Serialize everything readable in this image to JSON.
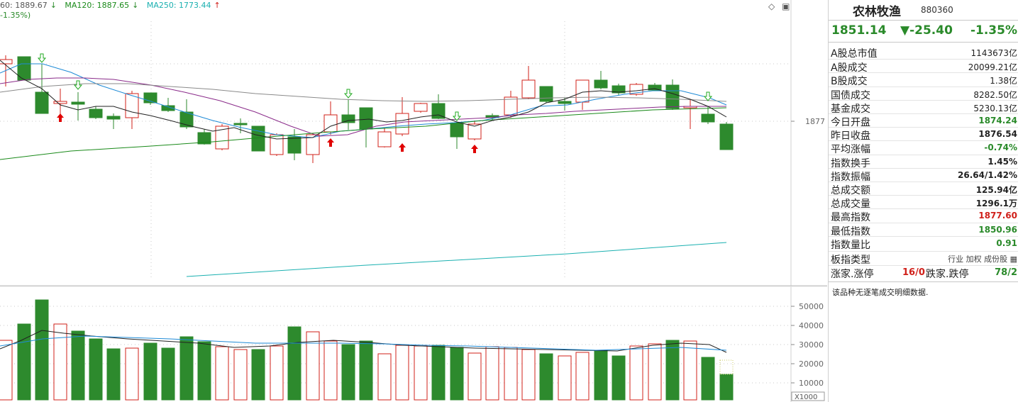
{
  "legend": {
    "ma60": "60: 1889.67",
    "ma60_arrow": "↓",
    "ma120": "MA120: 1887.65",
    "ma120_arrow": "↓",
    "ma250": "MA250: 1773.44",
    "ma250_arrow": "↑",
    "pct": "-1.35%)",
    "colors": {
      "ma60": "#555555",
      "ma120": "#1a8a1a",
      "ma250": "#1ab0b0"
    }
  },
  "tool_icons": {
    "diamond": "◇",
    "window": "▣"
  },
  "axis_label_price": "1877",
  "volume_axis": [
    "50000",
    "40000",
    "30000",
    "20000",
    "10000"
  ],
  "volume_unit": "X1000",
  "side": {
    "name": "农林牧渔",
    "code": "880360",
    "price": "1851.14",
    "change": "▼-25.40",
    "change_pct": "-1.35%",
    "rows": [
      {
        "label": "A股总市值",
        "value": "1143673亿",
        "color": "black"
      },
      {
        "label": "A股成交",
        "value": "20099.21亿",
        "color": "black"
      },
      {
        "label": "B股成交",
        "value": "1.38亿",
        "color": "black"
      },
      {
        "label": "国债成交",
        "value": "8282.50亿",
        "color": "black"
      },
      {
        "label": "基金成交",
        "value": "5230.13亿",
        "color": "black"
      },
      {
        "label": "今日开盘",
        "value": "1874.24",
        "color": "green"
      },
      {
        "label": "昨日收盘",
        "value": "1876.54",
        "color": "black"
      },
      {
        "label": "平均涨幅",
        "value": "-0.74%",
        "color": "green"
      },
      {
        "label": "指数换手",
        "value": "1.45%",
        "color": "black"
      },
      {
        "label": "指数振幅",
        "value": "26.64/1.42%",
        "color": "black"
      },
      {
        "label": "总成交额",
        "value": "125.94亿",
        "color": "black"
      },
      {
        "label": "总成交量",
        "value": "1296.1万",
        "color": "black"
      },
      {
        "label": "最高指数",
        "value": "1877.60",
        "color": "red"
      },
      {
        "label": "最低指数",
        "value": "1850.96",
        "color": "green"
      },
      {
        "label": "指数量比",
        "value": "0.91",
        "color": "green"
      }
    ],
    "type_label": "板指类型",
    "type_value": "行业 加权 成份股",
    "type_icon": "▦",
    "updown_label1": "涨家.涨停",
    "updown_val1": "16/0",
    "updown_label2": "跌家.跌停",
    "updown_val2": "78/2",
    "note": "该品种无逐笔成交明细数据."
  }
}
